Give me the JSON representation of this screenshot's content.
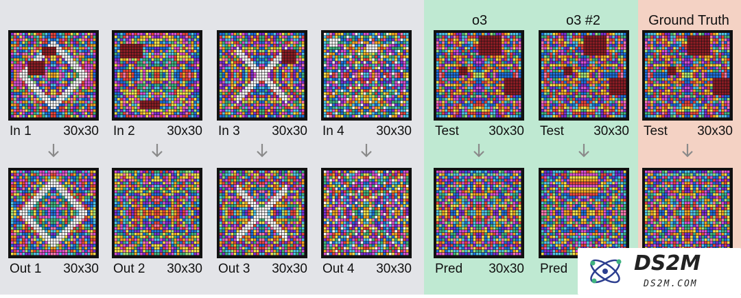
{
  "colors": {
    "train_bg": "#e3e4e8",
    "o3_bg": "#bfe9d2",
    "gt_bg": "#f4d2c4",
    "arrow": "#8a8a8a",
    "palette": [
      "#e8453c",
      "#f5a623",
      "#f7e14a",
      "#3fb37f",
      "#4fc3e8",
      "#1e6fd9",
      "#d94fd1",
      "#7b2fd1",
      "#8c1c24",
      "#ffffff",
      "#ff79b0",
      "#9ee07a"
    ]
  },
  "train_pairs": [
    {
      "input_label": "In 1",
      "input_size": "30x30",
      "output_label": "Out 1",
      "output_size": "30x30"
    },
    {
      "input_label": "In 2",
      "input_size": "30x30",
      "output_label": "Out 2",
      "output_size": "30x30"
    },
    {
      "input_label": "In 3",
      "input_size": "30x30",
      "output_label": "Out 3",
      "output_size": "30x30"
    },
    {
      "input_label": "In 4",
      "input_size": "30x30",
      "output_label": "Out 4",
      "output_size": "30x30"
    }
  ],
  "o3_attempts": [
    {
      "header": "o3",
      "input_label": "Test",
      "input_size": "30x30",
      "output_label": "Pred",
      "output_size": "30x30"
    },
    {
      "header": "o3 #2",
      "input_label": "Test",
      "input_size": "30x30",
      "output_label": "Pred",
      "output_size": ""
    }
  ],
  "ground_truth": {
    "header": "Ground Truth",
    "input_label": "Test",
    "input_size": "30x30"
  },
  "watermark": {
    "title": "DS2M",
    "subtitle": "DS2M.COM"
  }
}
